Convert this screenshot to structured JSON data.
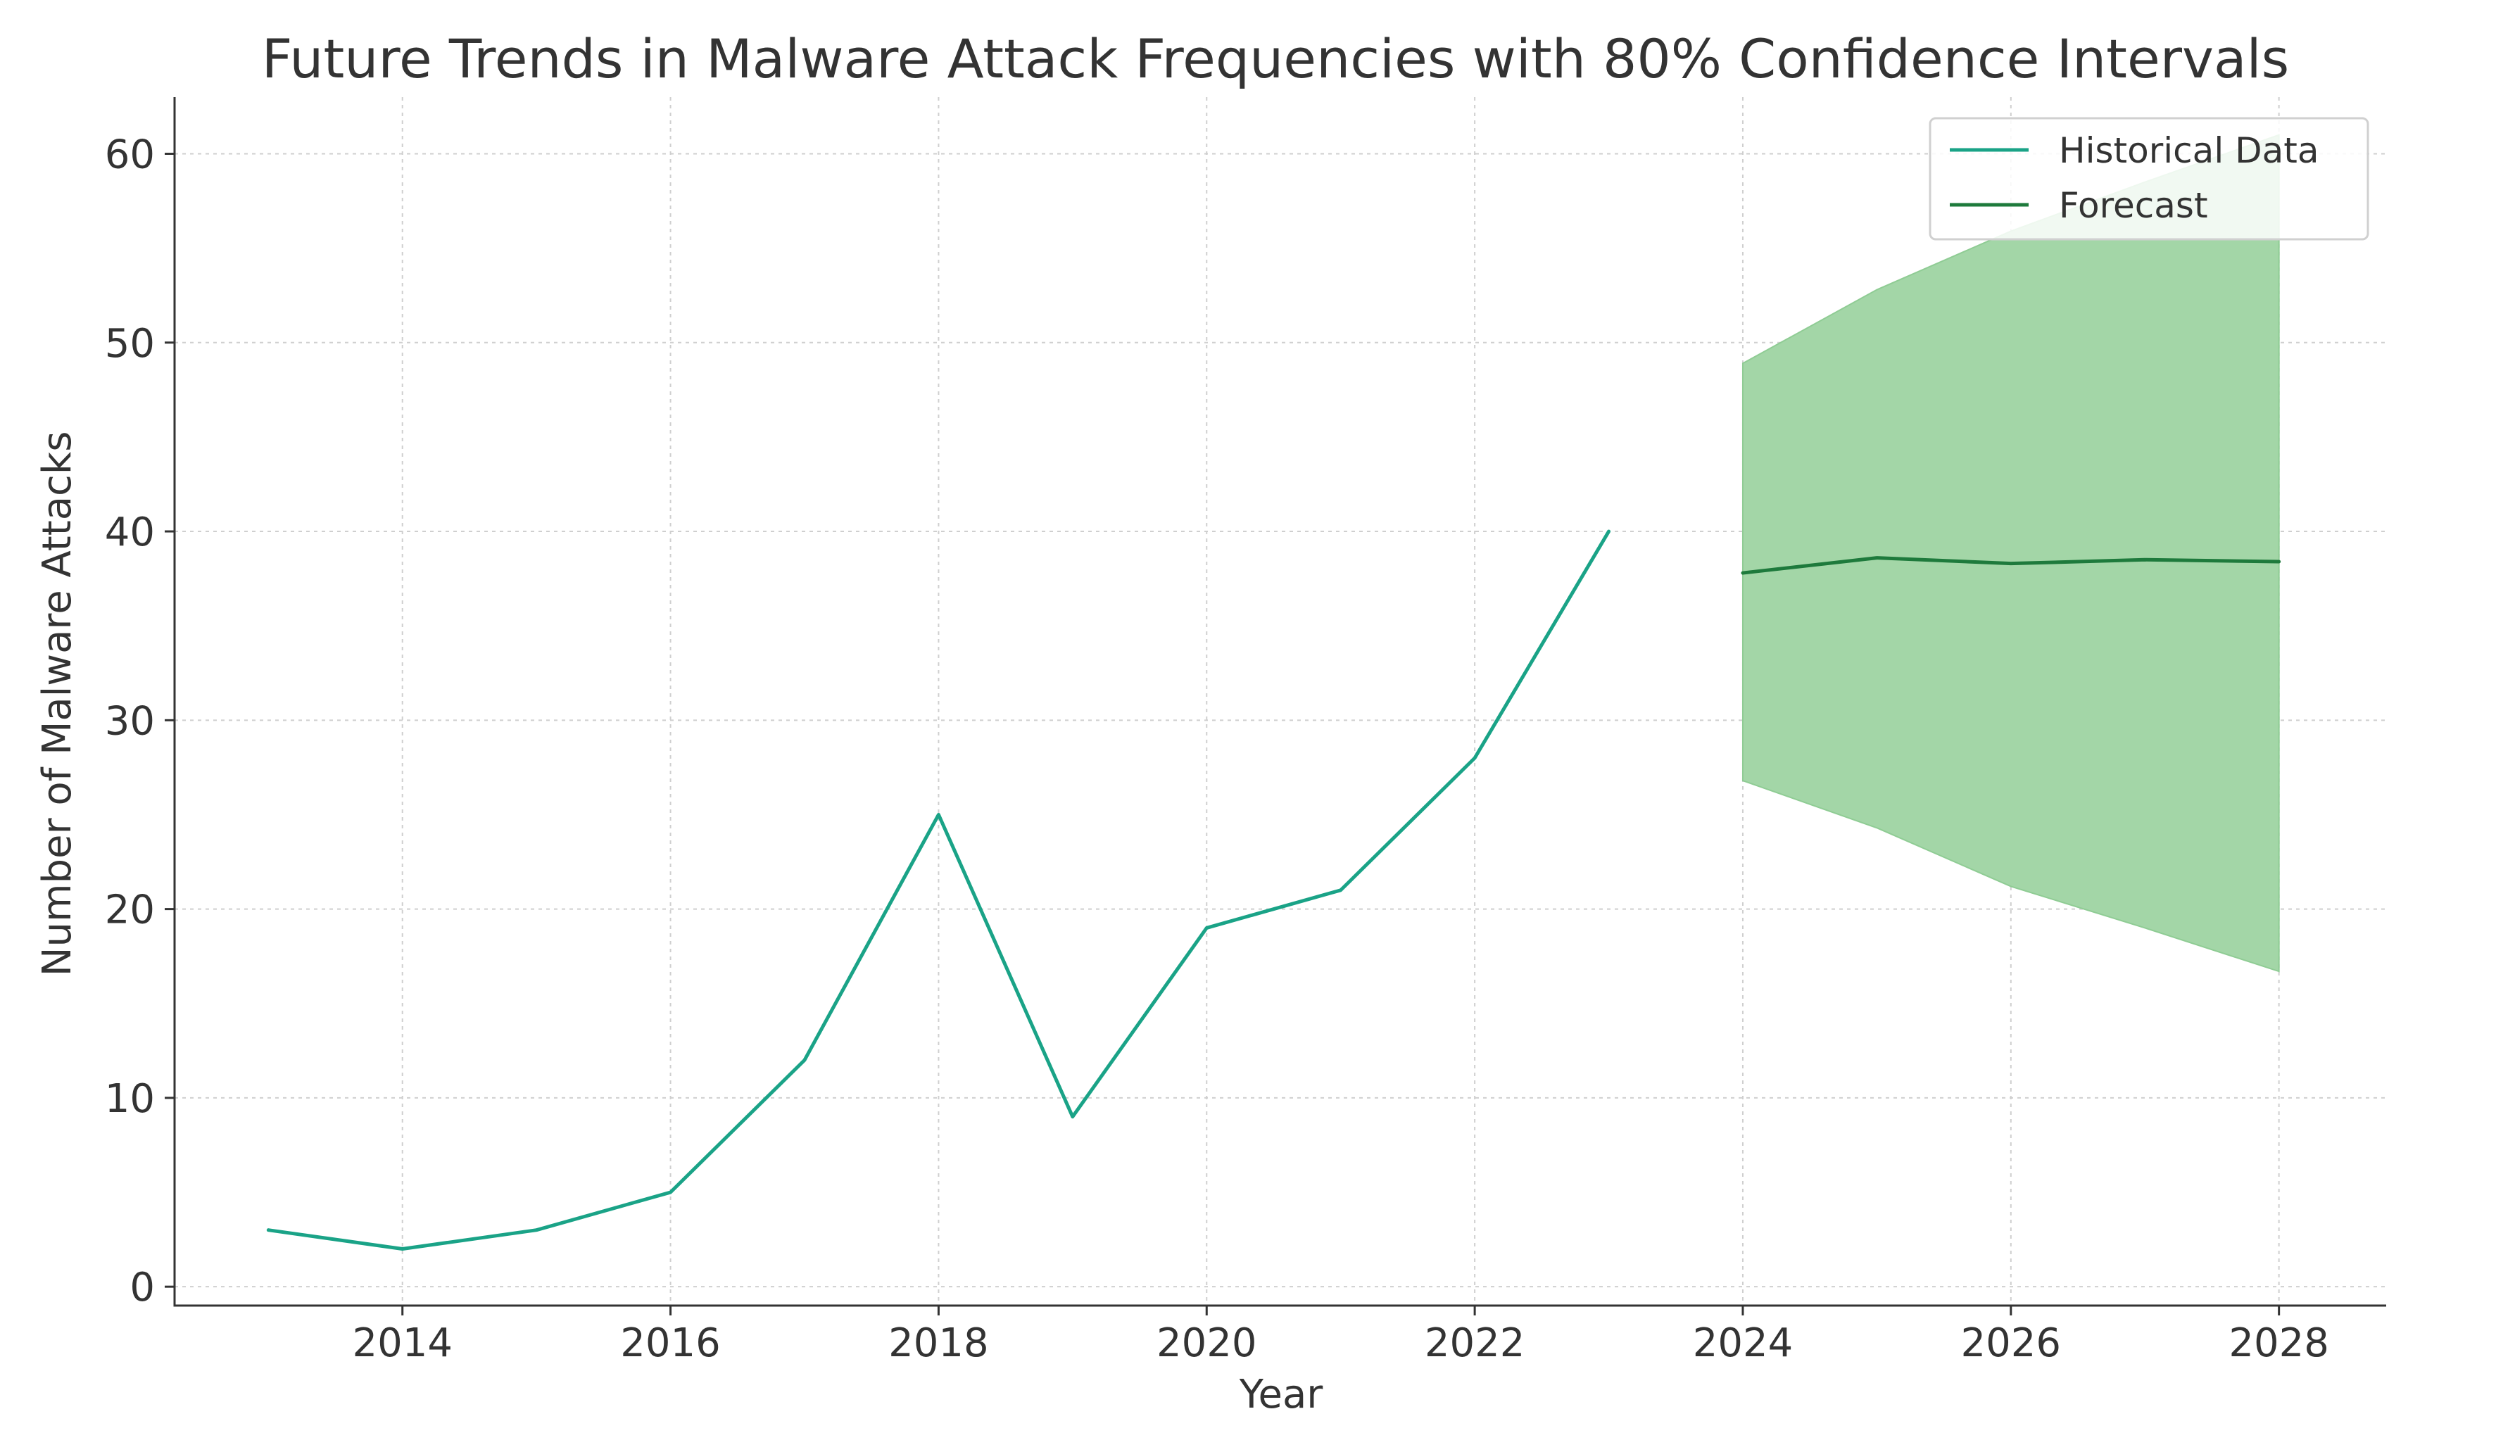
{
  "chart_data": {
    "type": "line",
    "title": "Future Trends in Malware Attack Frequencies with 80% Confidence Intervals",
    "xlabel": "Year",
    "ylabel": "Number of Malware Attacks",
    "xlim": [
      2012.3,
      2028.8
    ],
    "ylim": [
      -1,
      63
    ],
    "xticks": [
      2014,
      2016,
      2018,
      2020,
      2022,
      2024,
      2026,
      2028
    ],
    "yticks": [
      0,
      10,
      20,
      30,
      40,
      50,
      60
    ],
    "grid": true,
    "legend_position": "upper right",
    "series": [
      {
        "name": "Historical Data",
        "color": "#1aa387",
        "x": [
          2013,
          2014,
          2015,
          2016,
          2017,
          2018,
          2019,
          2020,
          2021,
          2022,
          2023
        ],
        "y": [
          3,
          2,
          3,
          5,
          12,
          25,
          9,
          19,
          21,
          28,
          40
        ]
      },
      {
        "name": "Forecast",
        "color": "#1e7a3c",
        "x": [
          2024,
          2025,
          2026,
          2027,
          2028
        ],
        "y": [
          37.8,
          38.6,
          38.3,
          38.5,
          38.4
        ]
      }
    ],
    "confidence_interval": {
      "level": "80%",
      "color": "#a3d6a7",
      "x": [
        2024,
        2025,
        2026,
        2027,
        2028
      ],
      "lower": [
        26.8,
        24.3,
        21.2,
        19.0,
        16.7
      ],
      "upper": [
        48.9,
        52.8,
        55.9,
        58.5,
        61.0
      ]
    }
  }
}
